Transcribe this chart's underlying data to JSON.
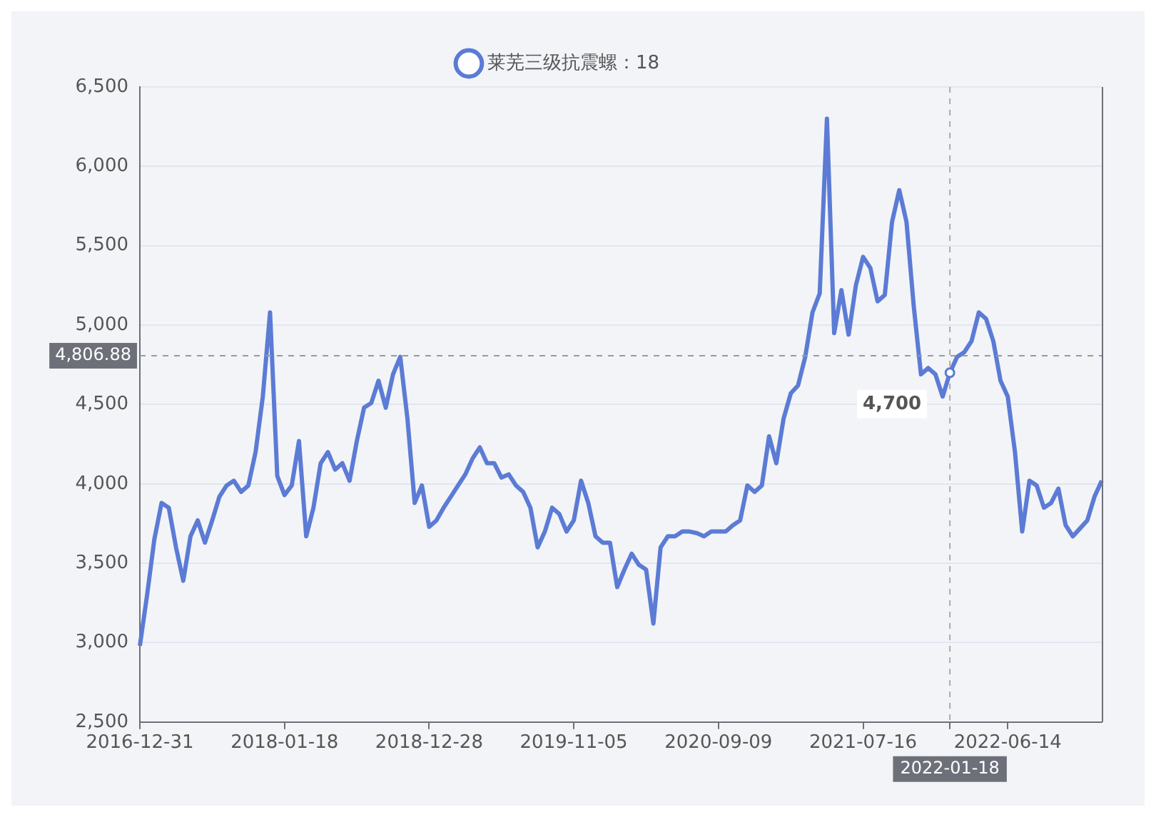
{
  "chart_data": {
    "type": "line",
    "categories": [
      "2016-12-31",
      null,
      null,
      null,
      null,
      null,
      null,
      null,
      null,
      null,
      null,
      null,
      null,
      null,
      null,
      null,
      null,
      null,
      null,
      null,
      "2018-01-18",
      null,
      null,
      null,
      null,
      null,
      null,
      null,
      null,
      null,
      null,
      null,
      null,
      null,
      null,
      null,
      null,
      null,
      null,
      null,
      "2018-12-28",
      null,
      null,
      null,
      null,
      null,
      null,
      null,
      null,
      null,
      null,
      null,
      null,
      null,
      null,
      null,
      null,
      null,
      null,
      null,
      "2019-11-05",
      null,
      null,
      null,
      null,
      null,
      null,
      null,
      null,
      null,
      null,
      null,
      null,
      null,
      null,
      null,
      null,
      null,
      null,
      null,
      "2020-09-09",
      null,
      null,
      null,
      null,
      null,
      null,
      null,
      null,
      null,
      null,
      null,
      null,
      null,
      null,
      null,
      null,
      null,
      null,
      null,
      "2021-07-16",
      null,
      null,
      null,
      null,
      null,
      null,
      null,
      null,
      null,
      null,
      null,
      "2022-01-18",
      null,
      null,
      null,
      null,
      null,
      null,
      null,
      "2022-06-14",
      null,
      null,
      null,
      null,
      null,
      null,
      null,
      null,
      null,
      null,
      null,
      null,
      null
    ],
    "series": [
      {
        "name": "莱芜三级抗震螺：18",
        "color": "#5b7bd5",
        "values": [
          2980,
          3300,
          3650,
          3880,
          3850,
          3600,
          3390,
          3670,
          3770,
          3630,
          3770,
          3920,
          3990,
          4020,
          3950,
          3990,
          4200,
          4550,
          5080,
          4050,
          3930,
          3990,
          4270,
          3670,
          3850,
          4130,
          4200,
          4090,
          4130,
          4020,
          4270,
          4480,
          4510,
          4650,
          4480,
          4690,
          4800,
          4410,
          3880,
          3990,
          3730,
          3770,
          3850,
          3920,
          3990,
          4060,
          4160,
          4230,
          4130,
          4130,
          4040,
          4060,
          3990,
          3950,
          3850,
          3600,
          3700,
          3850,
          3810,
          3700,
          3770,
          4020,
          3880,
          3670,
          3630,
          3630,
          3350,
          3460,
          3560,
          3490,
          3460,
          3120,
          3600,
          3670,
          3670,
          3700,
          3700,
          3690,
          3670,
          3700,
          3700,
          3700,
          3740,
          3770,
          3990,
          3950,
          3990,
          4300,
          4130,
          4410,
          4570,
          4620,
          4800,
          5080,
          5200,
          6300,
          4950,
          5220,
          4940,
          5250,
          5430,
          5360,
          5150,
          5190,
          5650,
          5850,
          5650,
          5120,
          4690,
          4730,
          4690,
          4550,
          4700,
          4800,
          4830,
          4900,
          5080,
          5040,
          4900,
          4650,
          4550,
          4200,
          3700,
          4020,
          3990,
          3850,
          3880,
          3970,
          3740,
          3670,
          3720,
          3770,
          3920,
          4020
        ]
      }
    ],
    "ylim": [
      2500,
      6500
    ],
    "yticks": [
      {
        "value": 2500,
        "label": "2,500"
      },
      {
        "value": 3000,
        "label": "3,000"
      },
      {
        "value": 3500,
        "label": "3,500"
      },
      {
        "value": 4000,
        "label": "4,000"
      },
      {
        "value": 4500,
        "label": "4,500"
      },
      {
        "value": 5000,
        "label": "5,000"
      },
      {
        "value": 5500,
        "label": "5,500"
      },
      {
        "value": 6000,
        "label": "6,000"
      },
      {
        "value": 6500,
        "label": "6,500"
      }
    ],
    "grid": "y",
    "legend": "top",
    "ref_lines": [
      {
        "axis": "x",
        "value": "2022-01-18",
        "label": "2022-01-18",
        "color": "#aaaaaa",
        "line_style": "dashed"
      },
      {
        "axis": "y",
        "value": 4806.88,
        "label": "4,806.88",
        "color": "#999999",
        "line_style": "dashed"
      }
    ],
    "annotations": [
      {
        "text": "4,700",
        "x": "2022-01-18",
        "y": 4700
      }
    ]
  }
}
